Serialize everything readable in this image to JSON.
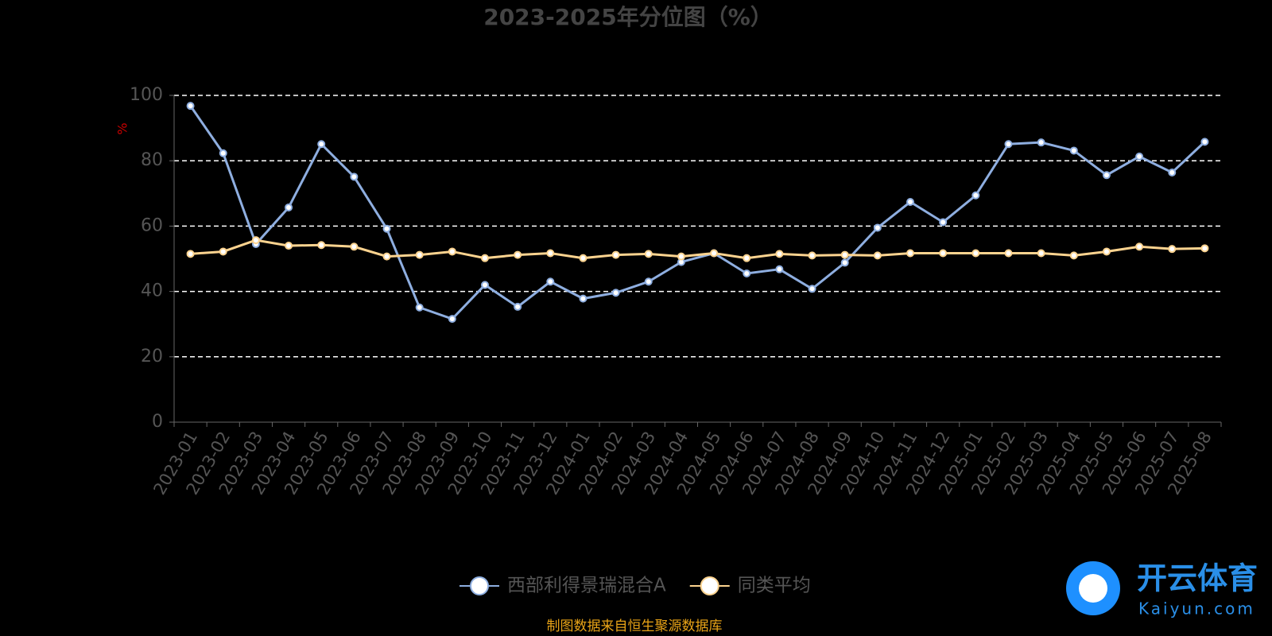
{
  "chart_data": {
    "type": "line",
    "title": "2023-2025年分位图（%）",
    "y_label": "%",
    "categories": [
      "2023-01",
      "2023-02",
      "2023-03",
      "2023-04",
      "2023-05",
      "2023-06",
      "2023-07",
      "2023-08",
      "2023-09",
      "2023-10",
      "2023-11",
      "2023-12",
      "2024-01",
      "2024-02",
      "2024-03",
      "2024-04",
      "2024-05",
      "2024-06",
      "2024-07",
      "2024-08",
      "2024-09",
      "2024-10",
      "2024-11",
      "2024-12",
      "2025-01",
      "2025-02",
      "2025-03",
      "2025-04",
      "2025-05",
      "2025-06",
      "2025-07",
      "2025-08"
    ],
    "series": [
      {
        "name": "西部利得景瑞混合A",
        "color": "#8eaee0",
        "values": [
          96.8,
          82.3,
          54.5,
          65.7,
          85.1,
          75.1,
          59.2,
          35.1,
          31.6,
          42.0,
          35.3,
          43.0,
          37.8,
          39.6,
          43.0,
          49.0,
          51.7,
          45.5,
          46.8,
          40.8,
          48.8,
          59.5,
          67.4,
          61.2,
          69.4,
          85.1,
          85.6,
          83.1,
          75.6,
          81.3,
          76.4,
          85.8
        ]
      },
      {
        "name": "同类平均",
        "color": "#fcd38f",
        "values": [
          51.5,
          52.2,
          55.7,
          54.0,
          54.2,
          53.7,
          50.7,
          51.2,
          52.2,
          50.2,
          51.2,
          51.7,
          50.2,
          51.2,
          51.5,
          50.7,
          51.7,
          50.2,
          51.5,
          51.0,
          51.2,
          51.0,
          51.7,
          51.7,
          51.7,
          51.7,
          51.7,
          51.0,
          52.2,
          53.7,
          53.0,
          53.2
        ]
      }
    ],
    "ylim": [
      0,
      100
    ],
    "yticks": [
      0,
      20,
      40,
      60,
      80,
      100
    ],
    "grid": true,
    "source": "制图数据来自恒生聚源数据库",
    "watermark": {
      "text": "开云体育",
      "url": "Kaiyun.com"
    }
  }
}
